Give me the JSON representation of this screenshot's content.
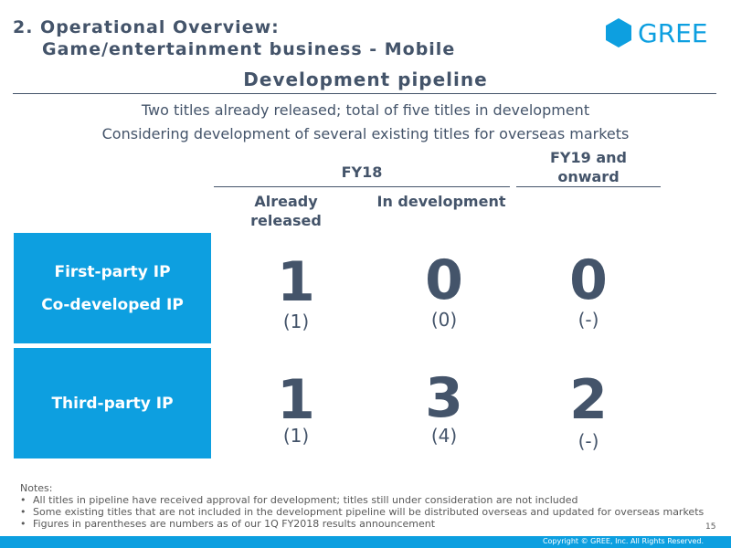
{
  "header": {
    "title_line1": "2. Operational Overview:",
    "title_line2": "Game/entertainment business - Mobile",
    "logo_text": "GREE"
  },
  "section_title": "Development pipeline",
  "subtitle_1": "Two titles already released; total of five titles in development",
  "subtitle_2": "Considering development of several existing titles for overseas markets",
  "columns": {
    "fy18": "FY18",
    "fy19": "FY19 and onward",
    "released": "Already released",
    "in_dev": "In development"
  },
  "rows": [
    {
      "labels": [
        "First-party IP",
        "Co-developed IP"
      ],
      "released": "1",
      "released_prev": "(1)",
      "in_dev": "0",
      "in_dev_prev": "(0)",
      "fy19": "0",
      "fy19_prev": "(-)"
    },
    {
      "labels": [
        "Third-party IP"
      ],
      "released": "1",
      "released_prev": "(1)",
      "in_dev": "3",
      "in_dev_prev": "(4)",
      "fy19": "2",
      "fy19_prev": "(-)"
    }
  ],
  "notes": {
    "heading": "Notes:",
    "items": [
      "All titles in pipeline have received approval for development; titles still under consideration are not included",
      "Some existing titles that are not included in the development pipeline will be distributed overseas and updated for overseas markets",
      "Figures in parentheses are numbers as of our 1Q FY2018 results announcement"
    ]
  },
  "page_number": "15",
  "copyright": "Copyright © GREE, Inc. All Rights Reserved.",
  "colors": {
    "accent": "#0d9fe0",
    "text": "#44546a"
  }
}
